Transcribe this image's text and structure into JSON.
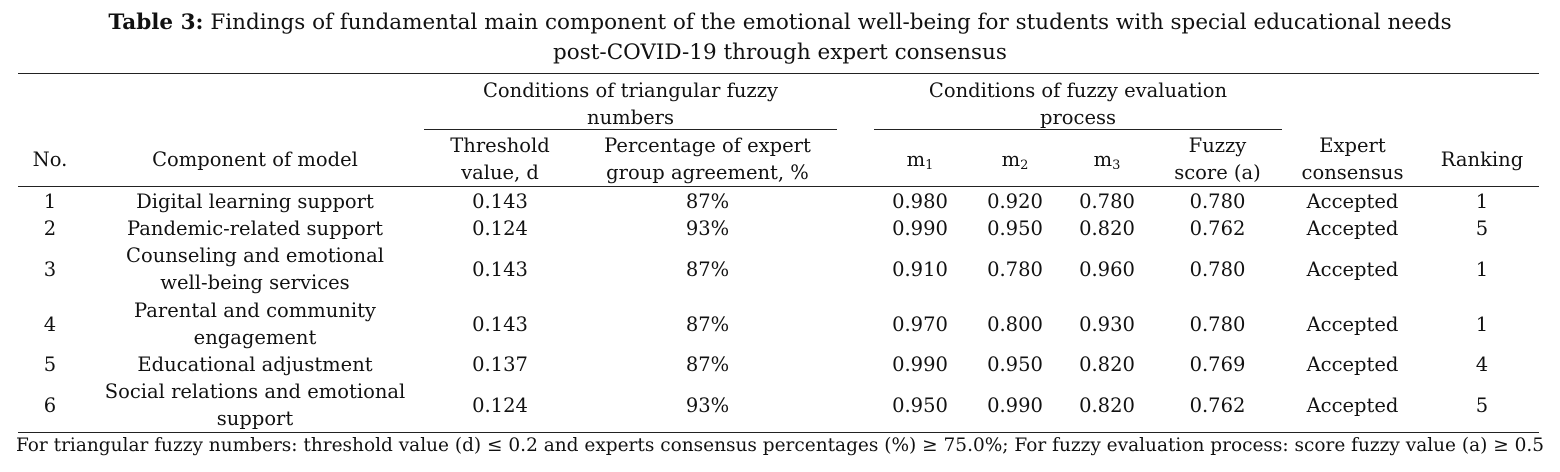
{
  "title": {
    "label": "Table 3:",
    "line1": "Findings of fundamental main component of the emotional well-being for students with special educational needs",
    "line2": "post-COVID-19 through expert consensus"
  },
  "headers": {
    "group_triangular_1": "Conditions of triangular fuzzy",
    "group_triangular_2": "numbers",
    "group_evaluation_1": "Conditions of fuzzy evaluation",
    "group_evaluation_2": "process",
    "no": "No.",
    "component": "Component of model",
    "threshold_1": "Threshold",
    "threshold_2": "value, d",
    "percentage_1": "Percentage of expert",
    "percentage_2": "group agreement, %",
    "m1": "m",
    "m1_sub": "1",
    "m2": "m",
    "m2_sub": "2",
    "m3": "m",
    "m3_sub": "3",
    "fuzzy_1": "Fuzzy",
    "fuzzy_2": "score (a)",
    "consensus_1": "Expert",
    "consensus_2": "consensus",
    "ranking": "Ranking"
  },
  "rows": [
    {
      "no": "1",
      "component": [
        "Digital learning support"
      ],
      "d": "0.143",
      "pct": "87%",
      "m1": "0.980",
      "m2": "0.920",
      "m3": "0.780",
      "a": "0.780",
      "consensus": "Accepted",
      "rank": "1"
    },
    {
      "no": "2",
      "component": [
        "Pandemic-related support"
      ],
      "d": "0.124",
      "pct": "93%",
      "m1": "0.990",
      "m2": "0.950",
      "m3": "0.820",
      "a": "0.762",
      "consensus": "Accepted",
      "rank": "5"
    },
    {
      "no": "3",
      "component": [
        "Counseling and emotional",
        "well-being services"
      ],
      "d": "0.143",
      "pct": "87%",
      "m1": "0.910",
      "m2": "0.780",
      "m3": "0.960",
      "a": "0.780",
      "consensus": "Accepted",
      "rank": "1"
    },
    {
      "no": "4",
      "component": [
        "Parental and community",
        "engagement"
      ],
      "d": "0.143",
      "pct": "87%",
      "m1": "0.970",
      "m2": "0.800",
      "m3": "0.930",
      "a": "0.780",
      "consensus": "Accepted",
      "rank": "1"
    },
    {
      "no": "5",
      "component": [
        "Educational adjustment"
      ],
      "d": "0.137",
      "pct": "87%",
      "m1": "0.990",
      "m2": "0.950",
      "m3": "0.820",
      "a": "0.769",
      "consensus": "Accepted",
      "rank": "4"
    },
    {
      "no": "6",
      "component": [
        "Social relations and emotional",
        "support"
      ],
      "d": "0.124",
      "pct": "93%",
      "m1": "0.950",
      "m2": "0.990",
      "m3": "0.820",
      "a": "0.762",
      "consensus": "Accepted",
      "rank": "5"
    }
  ],
  "footnote": "For triangular fuzzy numbers: threshold value (d) ≤ 0.2 and experts consensus percentages (%) ≥ 75.0%; For fuzzy evaluation process: score fuzzy value (a) ≥ 0.5"
}
